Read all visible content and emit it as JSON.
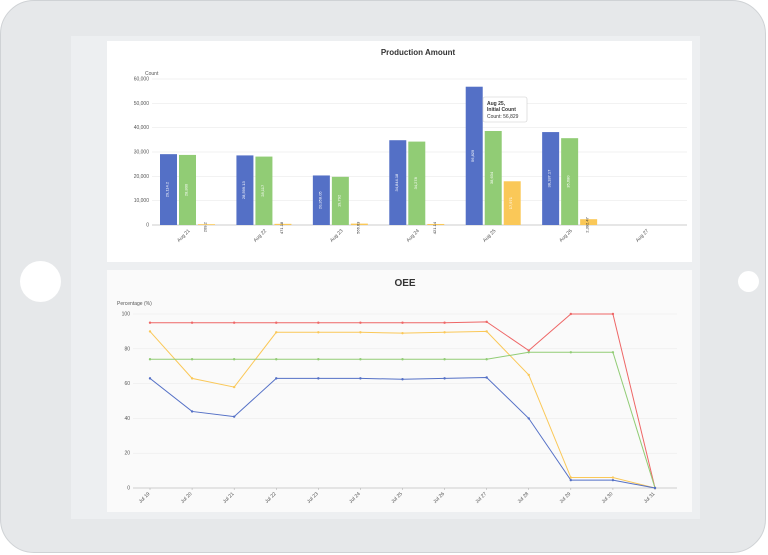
{
  "colors": {
    "initial_count": "#5470c6",
    "green": "#91cc75",
    "yellow": "#fac858",
    "oee_red": "#ee6666",
    "oee_orange": "#fac858",
    "oee_green": "#91cc75",
    "oee_blue": "#5470c6"
  },
  "production_chart": {
    "title": "Production Amount",
    "ylabel": "Count",
    "chart_data": {
      "type": "bar",
      "categories": [
        "Aug 21",
        "Aug 22",
        "Aug 23",
        "Aug 24",
        "Aug 25",
        "Aug 26",
        "Aug 27"
      ],
      "ylim": [
        0,
        60000
      ],
      "yticks": [
        "0",
        "10,000",
        "20,000",
        "30,000",
        "40,000",
        "50,000",
        "60,000"
      ],
      "series": [
        {
          "name": "Initial Count",
          "values": [
            29114.2,
            28599.13,
            20358.05,
            34844.18,
            56829,
            38187.17,
            0
          ],
          "labels": [
            "29,114.2",
            "28,599.13",
            "20,358.05",
            "34,844.18",
            "56,829",
            "38,187.17",
            ""
          ]
        },
        {
          "values": [
            28800,
            28117,
            19792,
            34278,
            38634,
            35680,
            0
          ],
          "labels": [
            "28,800",
            "28,117",
            "19,792",
            "34,278",
            "38,634",
            "35,680",
            ""
          ]
        },
        {
          "values": [
            209.2,
            471.18,
            566.63,
            421.14,
            17971,
            2392.47,
            0
          ],
          "labels": [
            "209.2",
            "471.18",
            "566.63",
            "421.14",
            "17,971",
            "2,392.47",
            ""
          ]
        }
      ]
    },
    "tooltip": {
      "date": "Aug 25,",
      "series": "Initial Count",
      "text": "Count: 56,829"
    }
  },
  "oee_chart": {
    "title": "OEE",
    "ylabel": "Percentage (%)",
    "chart_data": {
      "type": "line",
      "x": [
        "Jul 19",
        "Jul 20",
        "Jul 21",
        "Jul 22",
        "Jul 23",
        "Jul 24",
        "Jul 25",
        "Jul 26",
        "Jul 27",
        "Jul 28",
        "Jul 29",
        "Jul 30",
        "Jul 31"
      ],
      "ylim": [
        0,
        100
      ],
      "yticks": [
        "0",
        "20",
        "40",
        "60",
        "80",
        "100"
      ],
      "series": [
        {
          "values": [
            95,
            95,
            95,
            95,
            95,
            95,
            95,
            95,
            95.5,
            79,
            100,
            100,
            0
          ]
        },
        {
          "values": [
            90,
            63,
            58,
            89.5,
            89.5,
            89.5,
            89,
            89.5,
            90,
            65,
            6,
            6,
            0
          ]
        },
        {
          "values": [
            74,
            74,
            74,
            74,
            74,
            74,
            74,
            74,
            74,
            78,
            78,
            78,
            0
          ]
        },
        {
          "values": [
            63,
            44,
            41,
            63,
            63,
            63,
            62.5,
            63,
            63.5,
            40,
            4.5,
            4.5,
            0
          ]
        }
      ]
    }
  }
}
